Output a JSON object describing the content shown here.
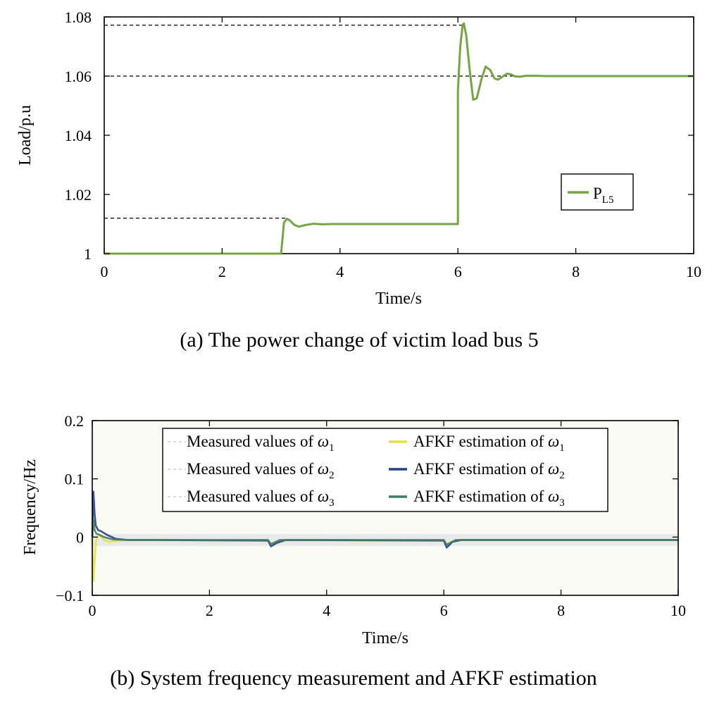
{
  "chart_data": [
    {
      "type": "line",
      "caption": "(a) The power change of victim load bus 5",
      "xlabel": "Time/s",
      "ylabel": "Load/p.u",
      "xlim": [
        0,
        10
      ],
      "ylim": [
        1,
        1.08
      ],
      "xticks": [
        0,
        2,
        4,
        6,
        8,
        10
      ],
      "yticks": [
        1,
        1.02,
        1.04,
        1.06,
        1.08
      ],
      "ytick_labels": [
        "1",
        "1.02",
        "1.04",
        "1.06",
        "1.08"
      ],
      "legend": {
        "entries": [
          {
            "main": "P",
            "sub": "L5"
          }
        ],
        "placement": "right"
      },
      "colors": {
        "series": "#76a443",
        "reference": "#000000"
      },
      "reference_lines": [
        {
          "y": 1.0772,
          "x": [
            0,
            6.1
          ]
        },
        {
          "y": 1.06,
          "x": [
            0,
            7.0
          ]
        },
        {
          "y": 1.012,
          "x": [
            0,
            3.1
          ]
        }
      ],
      "series": [
        {
          "name": "P_L5",
          "x": [
            0,
            3.0,
            3.0,
            3.05,
            3.1,
            3.15,
            3.22,
            3.3,
            3.42,
            3.55,
            3.7,
            3.85,
            6.0,
            6.0,
            6.04,
            6.08,
            6.1,
            6.14,
            6.2,
            6.26,
            6.32,
            6.4,
            6.47,
            6.55,
            6.62,
            6.68,
            6.75,
            6.83,
            6.9,
            6.97,
            7.05,
            7.15,
            7.3,
            7.5,
            10
          ],
          "y": [
            1.0,
            1.0,
            1.0,
            1.0105,
            1.0118,
            1.0112,
            1.0098,
            1.0091,
            1.0097,
            1.0101,
            1.0099,
            1.01,
            1.01,
            1.055,
            1.07,
            1.0772,
            1.0778,
            1.074,
            1.062,
            1.052,
            1.0525,
            1.059,
            1.0632,
            1.062,
            1.0592,
            1.0588,
            1.0597,
            1.0608,
            1.0606,
            1.0599,
            1.0598,
            1.0601,
            1.0601,
            1.06,
            1.06
          ]
        }
      ]
    },
    {
      "type": "line",
      "caption": "(b) System frequency measurement and AFKF estimation",
      "xlabel": "Time/s",
      "ylabel": "Frequency/Hz",
      "xlim": [
        0,
        10
      ],
      "ylim": [
        -0.1,
        0.2
      ],
      "xticks": [
        0,
        2,
        4,
        6,
        8,
        10
      ],
      "yticks": [
        -0.1,
        0,
        0.1,
        0.2
      ],
      "ytick_labels": [
        "−0.1",
        "0",
        "0.1",
        "0.2"
      ],
      "legend": {
        "placement": "top",
        "entries": [
          {
            "prefix": "Measured values of ",
            "sym": "ω",
            "sub": "1"
          },
          {
            "prefix": "AFKF estimation of ",
            "sym": "ω",
            "sub": "1"
          },
          {
            "prefix": "Measured values of ",
            "sym": "ω",
            "sub": "2"
          },
          {
            "prefix": "AFKF estimation of ",
            "sym": "ω",
            "sub": "2"
          },
          {
            "prefix": "Measured values of ",
            "sym": "ω",
            "sub": "3"
          },
          {
            "prefix": "AFKF estimation of ",
            "sym": "ω",
            "sub": "3"
          }
        ]
      },
      "colors": {
        "measured": "#d8dbe3",
        "afkf1": "#e3e34a",
        "afkf2": "#2b3f86",
        "afkf3": "#437e63"
      },
      "series": [
        {
          "name": "AFKF estimation of ω1",
          "color_key": "afkf1",
          "x": [
            0,
            0.02,
            0.04,
            0.06,
            0.08,
            0.12,
            0.2,
            0.3,
            0.45,
            0.7,
            1.0,
            3.0,
            3.05,
            3.2,
            6.0,
            6.05,
            6.2,
            10
          ],
          "y": [
            0,
            -0.075,
            -0.04,
            -0.01,
            0.0,
            0.004,
            -0.005,
            -0.008,
            -0.006,
            -0.005,
            -0.005,
            -0.006,
            -0.012,
            -0.006,
            -0.006,
            -0.012,
            -0.005,
            -0.005
          ]
        },
        {
          "name": "AFKF estimation of ω2",
          "color_key": "afkf2",
          "x": [
            0,
            0.02,
            0.04,
            0.06,
            0.1,
            0.15,
            0.25,
            0.4,
            0.6,
            1.0,
            3.0,
            3.05,
            3.15,
            3.3,
            6.0,
            6.05,
            6.15,
            6.3,
            10
          ],
          "y": [
            0,
            0.078,
            0.04,
            0.02,
            0.012,
            0.01,
            0.004,
            -0.003,
            -0.005,
            -0.005,
            -0.006,
            -0.016,
            -0.01,
            -0.005,
            -0.006,
            -0.018,
            -0.008,
            -0.005,
            -0.005
          ]
        },
        {
          "name": "AFKF estimation of ω3",
          "color_key": "afkf3",
          "x": [
            0,
            0.02,
            0.04,
            0.07,
            0.12,
            0.2,
            0.35,
            0.6,
            1.0,
            3.0,
            3.05,
            3.2,
            6.0,
            6.05,
            6.2,
            10
          ],
          "y": [
            0,
            0.03,
            0.012,
            0.006,
            0.004,
            0.0,
            -0.004,
            -0.005,
            -0.005,
            -0.005,
            -0.012,
            -0.005,
            -0.005,
            -0.013,
            -0.005,
            -0.005
          ]
        }
      ]
    }
  ]
}
